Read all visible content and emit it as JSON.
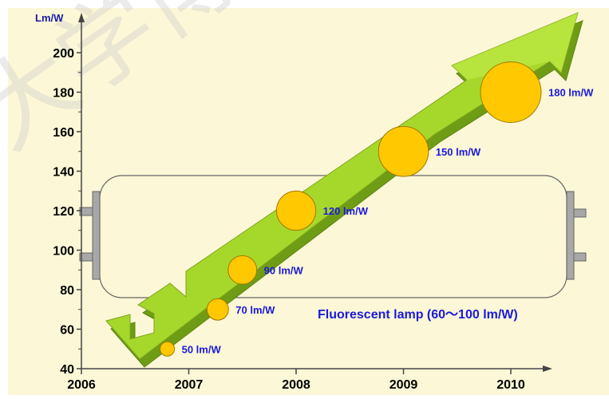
{
  "watermark_text": "大学博",
  "colors": {
    "background": "#fcf7d6",
    "arrow": "#a5d82b",
    "arrow_dark": "#6f9c15",
    "bubble": "#ffc800",
    "bubble_edge": "#a27800",
    "label_blue": "#1a1adb"
  },
  "chart_data": {
    "type": "scatter",
    "title": "",
    "xlabel": "",
    "ylabel": "Lm/W",
    "x_ticks": [
      "2006",
      "2007",
      "2008",
      "2009",
      "2010"
    ],
    "y_ticks": [
      "40",
      "60",
      "80",
      "100",
      "120",
      "140",
      "160",
      "180",
      "200"
    ],
    "xlim": [
      2006,
      2010.6
    ],
    "ylim": [
      40,
      215
    ],
    "grid": false,
    "series": [
      {
        "points": [
          {
            "x": 2006.8,
            "y": 50,
            "label": "50 lm/W"
          },
          {
            "x": 2007.27,
            "y": 70,
            "label": "70 lm/W"
          },
          {
            "x": 2007.5,
            "y": 90,
            "label": "90 lm/W"
          },
          {
            "x": 2008.0,
            "y": 120,
            "label": "120 lm/W"
          },
          {
            "x": 2009.0,
            "y": 150,
            "label": "150 lm/W"
          },
          {
            "x": 2010.0,
            "y": 180,
            "label": "180 lm/W"
          }
        ]
      }
    ],
    "annotations": [
      {
        "text": "Fluorescent lamp (60～100 lm/W)",
        "range": [
          60,
          100
        ]
      }
    ]
  }
}
